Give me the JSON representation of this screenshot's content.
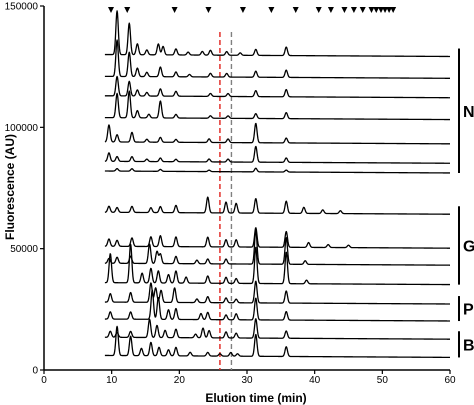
{
  "chart_data": {
    "type": "line",
    "title": "",
    "xlabel": "Elution time (min)",
    "ylabel": "Fluorescence (AU)",
    "xlim": [
      0,
      60
    ],
    "ylim": [
      0,
      150000
    ],
    "x_ticks": [
      0,
      10,
      20,
      30,
      40,
      50,
      60
    ],
    "y_ticks": [
      0,
      50000,
      100000,
      150000
    ],
    "x_tick_labels": [
      "0",
      "10",
      "20",
      "30",
      "40",
      "50",
      "60"
    ],
    "y_tick_labels": [
      "0",
      "50000",
      "100000",
      "150000"
    ],
    "grid": false,
    "legend": "none",
    "marker_times": [
      9.9,
      12.3,
      19.3,
      24.3,
      29.4,
      33.6,
      37.2,
      40.6,
      42.4,
      44.4,
      45.8,
      47.1,
      48.4,
      49.1,
      49.8,
      50.4,
      51.0,
      51.6
    ],
    "reference_lines": [
      {
        "x": 26.0,
        "color": "#e0201b",
        "style": "dashed"
      },
      {
        "x": 27.7,
        "color": "#808080",
        "style": "dashed"
      }
    ],
    "groups": [
      {
        "label": "N",
        "traces": [
          0,
          1,
          2,
          3,
          4,
          5,
          6
        ]
      },
      {
        "label": "G",
        "traces": [
          7,
          8,
          9,
          10
        ]
      },
      {
        "label": "P",
        "traces": [
          11,
          12
        ]
      },
      {
        "label": "B",
        "traces": [
          13,
          14
        ]
      }
    ],
    "series": [
      {
        "baseline": 130000,
        "peaks": [
          [
            10.8,
            18000
          ],
          [
            12.6,
            13000
          ],
          [
            13.8,
            4500
          ],
          [
            15.2,
            2000
          ],
          [
            16.9,
            4500
          ],
          [
            17.6,
            3500
          ],
          [
            19.5,
            2500
          ],
          [
            21.3,
            1200
          ],
          [
            23.4,
            1500
          ],
          [
            24.6,
            2000
          ],
          [
            27.0,
            1500
          ],
          [
            29.0,
            1000
          ],
          [
            31.3,
            2500
          ],
          [
            35.8,
            3500
          ]
        ]
      },
      {
        "baseline": 121000,
        "peaks": [
          [
            10.8,
            15000
          ],
          [
            12.6,
            10000
          ],
          [
            13.8,
            3500
          ],
          [
            15.2,
            1800
          ],
          [
            17.2,
            4000
          ],
          [
            19.5,
            2000
          ],
          [
            21.5,
            1000
          ],
          [
            24.6,
            1500
          ],
          [
            27.0,
            1500
          ],
          [
            31.3,
            2500
          ],
          [
            35.8,
            3000
          ]
        ]
      },
      {
        "baseline": 113000,
        "peaks": [
          [
            10.8,
            8000
          ],
          [
            12.6,
            6000
          ],
          [
            13.8,
            2500
          ],
          [
            15.2,
            1500
          ],
          [
            17.2,
            3000
          ],
          [
            19.5,
            2000
          ],
          [
            24.6,
            1200
          ],
          [
            27.2,
            1200
          ],
          [
            31.3,
            2500
          ],
          [
            35.8,
            3000
          ]
        ]
      },
      {
        "baseline": 104000,
        "peaks": [
          [
            10.8,
            10000
          ],
          [
            12.6,
            11000
          ],
          [
            13.8,
            3000
          ],
          [
            15.5,
            1500
          ],
          [
            17.2,
            7000
          ],
          [
            19.5,
            1500
          ],
          [
            24.6,
            1000
          ],
          [
            27.2,
            1000
          ],
          [
            31.3,
            2000
          ],
          [
            35.8,
            2500
          ]
        ]
      },
      {
        "baseline": 94000,
        "peaks": [
          [
            9.6,
            7000
          ],
          [
            10.8,
            3000
          ],
          [
            13.0,
            4000
          ],
          [
            15.2,
            1200
          ],
          [
            17.2,
            2000
          ],
          [
            19.5,
            1200
          ],
          [
            24.4,
            1500
          ],
          [
            27.2,
            1500
          ],
          [
            31.3,
            8000
          ],
          [
            35.8,
            2000
          ]
        ]
      },
      {
        "baseline": 86000,
        "peaks": [
          [
            9.6,
            3500
          ],
          [
            10.8,
            2000
          ],
          [
            13.0,
            2000
          ],
          [
            15.2,
            1000
          ],
          [
            17.2,
            1500
          ],
          [
            19.5,
            1000
          ],
          [
            24.4,
            1200
          ],
          [
            27.2,
            1200
          ],
          [
            31.3,
            6500
          ],
          [
            35.8,
            1800
          ]
        ]
      },
      {
        "baseline": 82000,
        "peaks": [
          [
            10.8,
            1000
          ],
          [
            13.0,
            1000
          ],
          [
            17.2,
            800
          ],
          [
            24.4,
            600
          ],
          [
            31.3,
            1500
          ],
          [
            35.8,
            800
          ]
        ]
      },
      {
        "baseline": 65000,
        "peaks": [
          [
            9.6,
            2500
          ],
          [
            10.8,
            2000
          ],
          [
            13.0,
            2500
          ],
          [
            15.8,
            2000
          ],
          [
            17.2,
            2500
          ],
          [
            19.5,
            3000
          ],
          [
            24.2,
            6500
          ],
          [
            26.9,
            4500
          ],
          [
            28.4,
            4000
          ],
          [
            31.3,
            6000
          ],
          [
            35.8,
            5000
          ],
          [
            38.4,
            2500
          ],
          [
            41.2,
            1500
          ],
          [
            43.8,
            1200
          ]
        ]
      },
      {
        "baseline": 51000,
        "peaks": [
          [
            9.6,
            3000
          ],
          [
            10.8,
            2500
          ],
          [
            13.0,
            3500
          ],
          [
            15.8,
            4000
          ],
          [
            17.2,
            4500
          ],
          [
            19.5,
            4000
          ],
          [
            24.2,
            4000
          ],
          [
            26.9,
            3000
          ],
          [
            28.4,
            3000
          ],
          [
            31.3,
            8000
          ],
          [
            35.8,
            6500
          ],
          [
            39.1,
            2000
          ],
          [
            42.0,
            1200
          ],
          [
            45.0,
            1000
          ]
        ]
      },
      {
        "baseline": 44000,
        "peaks": [
          [
            9.6,
            2000
          ],
          [
            10.8,
            2500
          ],
          [
            12.8,
            3000
          ],
          [
            15.6,
            8000
          ],
          [
            16.7,
            5000
          ],
          [
            17.2,
            4000
          ],
          [
            19.5,
            3000
          ],
          [
            22.6,
            1500
          ],
          [
            24.2,
            2000
          ],
          [
            26.9,
            2000
          ],
          [
            31.3,
            14000
          ],
          [
            35.8,
            11000
          ],
          [
            38.6,
            1500
          ]
        ]
      },
      {
        "baseline": 36000,
        "peaks": [
          [
            9.8,
            12000
          ],
          [
            12.8,
            16000
          ],
          [
            14.5,
            4000
          ],
          [
            15.8,
            6000
          ],
          [
            16.9,
            5000
          ],
          [
            18.4,
            3500
          ],
          [
            19.5,
            5000
          ],
          [
            21.0,
            2500
          ],
          [
            24.2,
            3000
          ],
          [
            26.9,
            2500
          ],
          [
            28.4,
            2000
          ],
          [
            31.3,
            15000
          ],
          [
            35.8,
            13000
          ],
          [
            38.8,
            1500
          ]
        ]
      },
      {
        "baseline": 28000,
        "peaks": [
          [
            9.8,
            3500
          ],
          [
            12.8,
            4000
          ],
          [
            15.8,
            8000
          ],
          [
            16.5,
            6000
          ],
          [
            17.3,
            5000
          ],
          [
            19.3,
            6000
          ],
          [
            22.6,
            1500
          ],
          [
            24.2,
            2500
          ],
          [
            26.9,
            2000
          ],
          [
            28.4,
            1500
          ],
          [
            31.3,
            9000
          ],
          [
            35.8,
            5000
          ]
        ]
      },
      {
        "baseline": 21000,
        "peaks": [
          [
            9.8,
            3000
          ],
          [
            12.8,
            3000
          ],
          [
            16.0,
            12000
          ],
          [
            16.9,
            9000
          ],
          [
            18.4,
            4000
          ],
          [
            19.5,
            4500
          ],
          [
            23.2,
            2500
          ],
          [
            24.2,
            3000
          ],
          [
            26.9,
            2000
          ],
          [
            28.4,
            2500
          ],
          [
            31.3,
            9000
          ],
          [
            35.8,
            3500
          ]
        ]
      },
      {
        "baseline": 13500,
        "peaks": [
          [
            9.8,
            2500
          ],
          [
            10.8,
            2000
          ],
          [
            12.8,
            2500
          ],
          [
            15.6,
            7500
          ],
          [
            16.7,
            5000
          ],
          [
            17.9,
            3000
          ],
          [
            19.5,
            3500
          ],
          [
            22.4,
            1500
          ],
          [
            23.5,
            4000
          ],
          [
            24.4,
            3000
          ],
          [
            26.9,
            2500
          ],
          [
            28.4,
            2000
          ],
          [
            31.3,
            8000
          ],
          [
            35.8,
            3000
          ]
        ]
      },
      {
        "baseline": 6000,
        "peaks": [
          [
            10.8,
            12000
          ],
          [
            12.8,
            8000
          ],
          [
            14.4,
            3000
          ],
          [
            15.8,
            5500
          ],
          [
            17.0,
            3500
          ],
          [
            18.4,
            2500
          ],
          [
            19.5,
            3500
          ],
          [
            21.6,
            1500
          ],
          [
            24.2,
            1500
          ],
          [
            26.0,
            1000
          ],
          [
            27.6,
            1500
          ],
          [
            28.6,
            1000
          ],
          [
            31.3,
            9000
          ],
          [
            35.8,
            4000
          ]
        ]
      }
    ]
  }
}
